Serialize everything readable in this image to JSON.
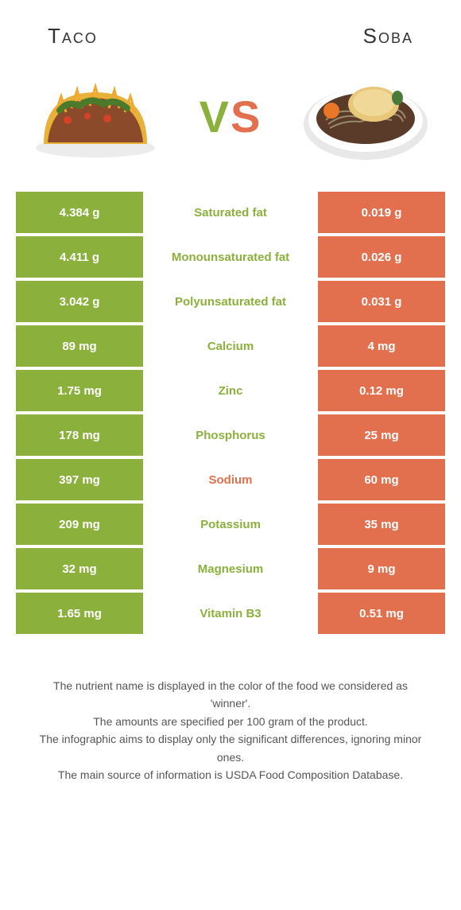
{
  "colors": {
    "left": "#8bb13c",
    "right": "#e2704f",
    "text": "#555555"
  },
  "header": {
    "left_title": "Taco",
    "right_title": "Soba",
    "vs_v": "V",
    "vs_s": "S"
  },
  "rows": [
    {
      "left": "4.384 g",
      "label": "Saturated fat",
      "right": "0.019 g",
      "winner": "left"
    },
    {
      "left": "4.411 g",
      "label": "Monounsaturated fat",
      "right": "0.026 g",
      "winner": "left"
    },
    {
      "left": "3.042 g",
      "label": "Polyunsaturated fat",
      "right": "0.031 g",
      "winner": "left"
    },
    {
      "left": "89 mg",
      "label": "Calcium",
      "right": "4 mg",
      "winner": "left"
    },
    {
      "left": "1.75 mg",
      "label": "Zinc",
      "right": "0.12 mg",
      "winner": "left"
    },
    {
      "left": "178 mg",
      "label": "Phosphorus",
      "right": "25 mg",
      "winner": "left"
    },
    {
      "left": "397 mg",
      "label": "Sodium",
      "right": "60 mg",
      "winner": "right"
    },
    {
      "left": "209 mg",
      "label": "Potassium",
      "right": "35 mg",
      "winner": "left"
    },
    {
      "left": "32 mg",
      "label": "Magnesium",
      "right": "9 mg",
      "winner": "left"
    },
    {
      "left": "1.65 mg",
      "label": "Vitamin B3",
      "right": "0.51 mg",
      "winner": "left"
    }
  ],
  "footer": {
    "line1": "The nutrient name is displayed in the color of the food we considered as 'winner'.",
    "line2": "The amounts are specified per 100 gram of the product.",
    "line3": "The infographic aims to display only the significant differences, ignoring minor ones.",
    "line4": "The main source of information is USDA Food Composition Database."
  }
}
